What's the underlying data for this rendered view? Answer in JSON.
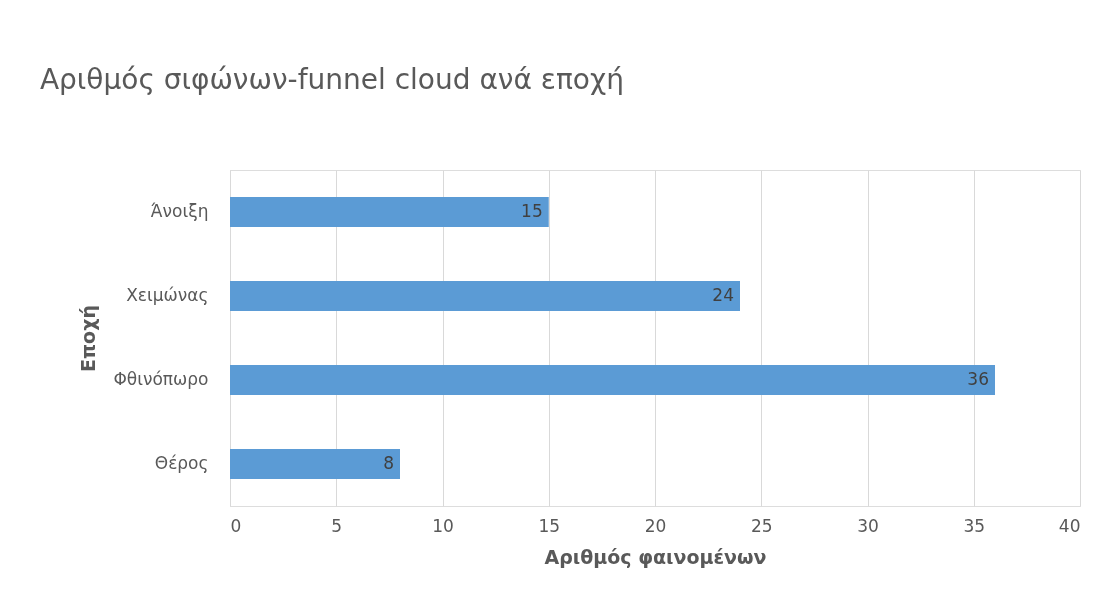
{
  "chart_data": {
    "type": "bar",
    "orientation": "horizontal",
    "title": "Αριθμός σιφώνων-funnel cloud ανά εποχή",
    "categories": [
      "Άνοιξη",
      "Χειμώνας",
      "Φθινόπωρο",
      "Θέρος"
    ],
    "values": [
      15,
      24,
      36,
      8
    ],
    "color": "#5b9bd5",
    "xlabel": "Αριθμός φαινομένων",
    "ylabel": "Εποχή",
    "xlim": [
      0,
      40
    ],
    "xticks": [
      0,
      5,
      10,
      15,
      20,
      25,
      30,
      35,
      40
    ],
    "grid": "x",
    "data_labels": true
  }
}
